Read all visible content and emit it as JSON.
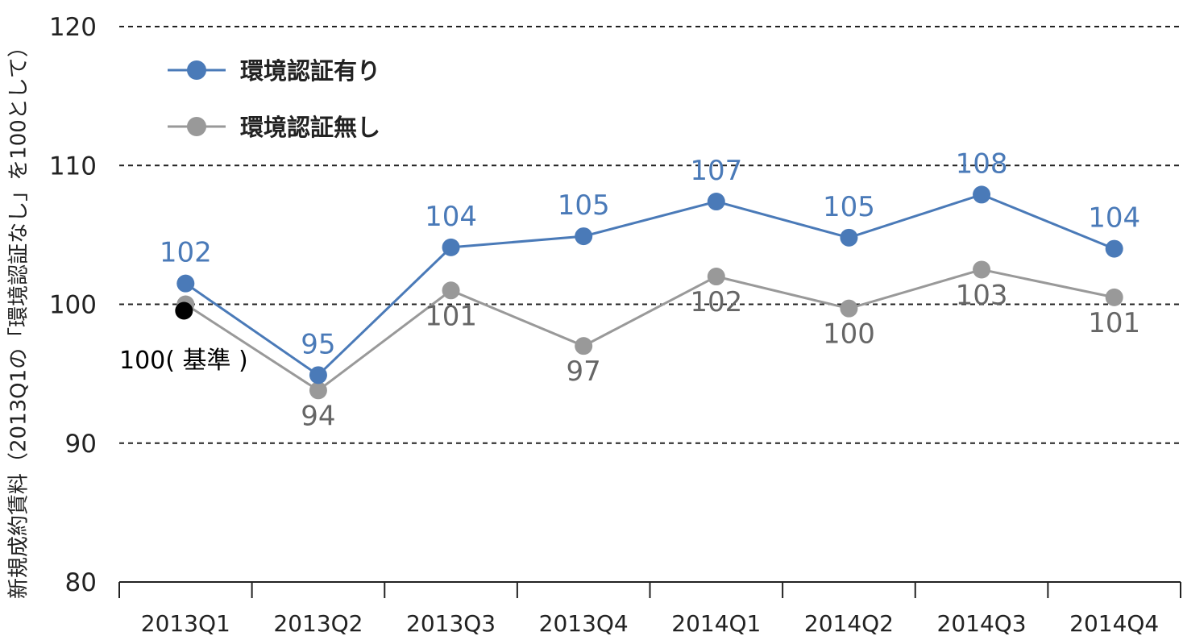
{
  "chart_data": {
    "type": "line",
    "ylabel": "新規成約賃料（2013Q1の「環境認証なし」を100として）",
    "xlabel": "",
    "title": "",
    "ylim": [
      80,
      120
    ],
    "yticks": [
      "80",
      "90",
      "100",
      "110",
      "120"
    ],
    "categories": [
      "2013Q1",
      "2013Q2",
      "2013Q3",
      "2013Q4",
      "2014Q1",
      "2014Q2",
      "2014Q3",
      "2014Q4"
    ],
    "grid": "horizontal dashed at 90, 100, 110, 120",
    "legend_position": "top-left",
    "series": [
      {
        "name": "環境認証有り",
        "color": "#4a7ab8",
        "values": [
          101.5,
          94.9,
          104.1,
          104.9,
          107.4,
          104.8,
          107.9,
          104.0
        ],
        "labels": [
          "102",
          "95",
          "104",
          "105",
          "107",
          "105",
          "108",
          "104"
        ],
        "label_position": "above"
      },
      {
        "name": "環境認証無し",
        "color": "#999999",
        "values": [
          100,
          93.8,
          101,
          97,
          102,
          99.7,
          102.5,
          100.5
        ],
        "labels": [
          "",
          "94",
          "101",
          "97",
          "102",
          "100",
          "103",
          "101"
        ],
        "label_position": "below"
      }
    ],
    "annotations": [
      {
        "text": "100( 基準 )",
        "category": "2013Q1",
        "value": 100,
        "color": "#000000"
      }
    ]
  }
}
